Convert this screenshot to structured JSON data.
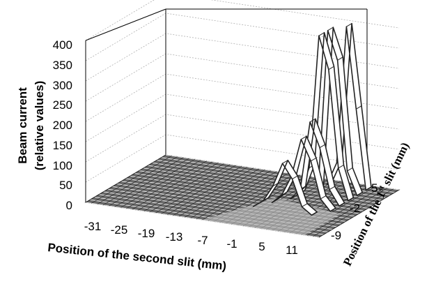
{
  "chart_data": {
    "type": "surface",
    "zlabel_line1": "Beam current",
    "zlabel_line2": "(relative values)",
    "xlabel": "Position of the second slit (mm)",
    "ylabel_prefix": "Position of the 1",
    "ylabel_sup": "st",
    "ylabel_suffix": " slit (mm)",
    "z_ticks": [
      "0",
      "50",
      "100",
      "150",
      "200",
      "250",
      "300",
      "350",
      "400"
    ],
    "x_ticks": [
      "-31",
      "-25",
      "-19",
      "-13",
      "-7",
      "-1",
      "5",
      "11"
    ],
    "y_ticks": [
      "5",
      "-2",
      "-9"
    ],
    "zlim": [
      0,
      400
    ],
    "xlim": [
      -33,
      15
    ],
    "ylim": [
      -10,
      8
    ],
    "peak_series": [
      {
        "y": -4,
        "x": [
          -4,
          -2,
          0,
          2,
          4,
          6,
          8
        ],
        "z": [
          3,
          20,
          60,
          120,
          85,
          20,
          3
        ]
      },
      {
        "y": -2,
        "x": [
          -2,
          0,
          2,
          4,
          6,
          8,
          10
        ],
        "z": [
          3,
          25,
          75,
          170,
          120,
          30,
          3
        ]
      },
      {
        "y": 0,
        "x": [
          0,
          2,
          4,
          6,
          8,
          10
        ],
        "z": [
          3,
          30,
          200,
          140,
          40,
          3
        ]
      },
      {
        "y": 2,
        "x": [
          0,
          2,
          4,
          6,
          8,
          10
        ],
        "z": [
          3,
          70,
          400,
          320,
          80,
          3
        ]
      },
      {
        "y": 4,
        "x": [
          2,
          4,
          6,
          8,
          10
        ],
        "z": [
          3,
          400,
          330,
          60,
          3
        ]
      },
      {
        "y": 6,
        "x": [
          2,
          4,
          6,
          8,
          10
        ],
        "z": [
          3,
          60,
          400,
          200,
          3
        ]
      }
    ],
    "colors": {
      "mesh": "#222222",
      "surface": "#ffffff",
      "shade": "#bdbdbd",
      "grid": "#b0b0b0"
    }
  }
}
